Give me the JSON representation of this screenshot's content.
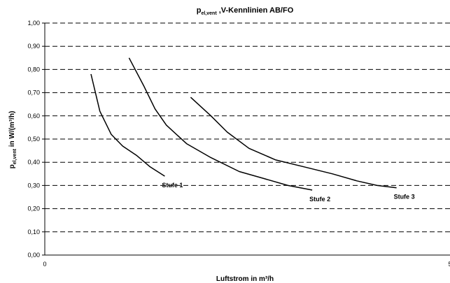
{
  "chart_data": {
    "type": "line",
    "title": {
      "main": "p",
      "sub": "el,vent",
      "rest": " ,V-Kennlinien AB/FO"
    },
    "xlabel": "Luftstrom in m³/h",
    "ylabel": {
      "main": "p",
      "sub": "el,vent",
      "rest": " in W/(m³/h)"
    },
    "xlim": [
      0,
      500
    ],
    "ylim": [
      0,
      1.0
    ],
    "x_ticks": [
      "0",
      "5"
    ],
    "y_ticks": [
      "0,00",
      "0,10",
      "0,20",
      "0,30",
      "0,40",
      "0,50",
      "0,60",
      "0,70",
      "0,80",
      "0,90",
      "1,00"
    ],
    "grid": "horizontal-dashed",
    "series": [
      {
        "name": "Stufe 1",
        "x": [
          57,
          68,
          82,
          96,
          113,
          130,
          148
        ],
        "y": [
          0.78,
          0.62,
          0.52,
          0.47,
          0.43,
          0.38,
          0.34
        ]
      },
      {
        "name": "Stufe 2",
        "x": [
          104,
          122,
          136,
          150,
          175,
          205,
          240,
          270,
          300,
          330
        ],
        "y": [
          0.85,
          0.73,
          0.63,
          0.56,
          0.48,
          0.42,
          0.36,
          0.33,
          0.3,
          0.28
        ]
      },
      {
        "name": "Stufe 3",
        "x": [
          180,
          205,
          225,
          252,
          285,
          320,
          355,
          385,
          410,
          434
        ],
        "y": [
          0.68,
          0.6,
          0.53,
          0.46,
          0.41,
          0.38,
          0.35,
          0.32,
          0.3,
          0.29
        ]
      }
    ]
  }
}
